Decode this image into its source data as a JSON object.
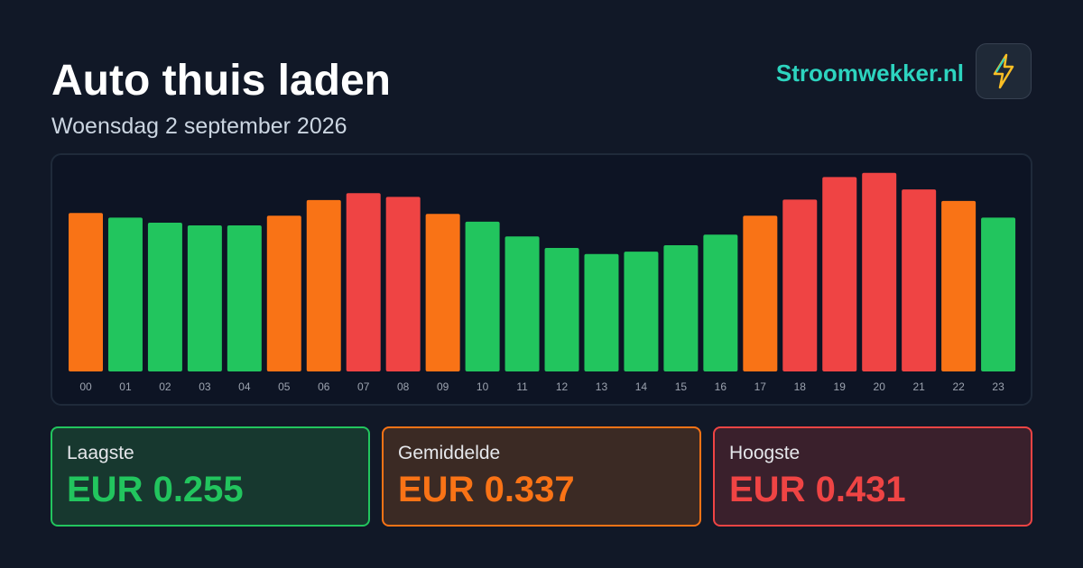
{
  "header": {
    "title": "Auto thuis laden",
    "subtitle": "Woensdag 2 september 2026",
    "brand": "Stroomwekker.nl"
  },
  "chart_data": {
    "type": "bar",
    "categories": [
      "00",
      "01",
      "02",
      "03",
      "04",
      "05",
      "06",
      "07",
      "08",
      "09",
      "10",
      "11",
      "12",
      "13",
      "14",
      "15",
      "16",
      "17",
      "18",
      "19",
      "20",
      "21",
      "22",
      "23"
    ],
    "values": [
      0.344,
      0.334,
      0.323,
      0.317,
      0.317,
      0.338,
      0.372,
      0.387,
      0.379,
      0.342,
      0.325,
      0.293,
      0.268,
      0.255,
      0.26,
      0.274,
      0.297,
      0.338,
      0.373,
      0.422,
      0.431,
      0.395,
      0.37,
      0.334
    ],
    "colors": [
      "#f97316",
      "#22c55e",
      "#22c55e",
      "#22c55e",
      "#22c55e",
      "#f97316",
      "#f97316",
      "#ef4444",
      "#ef4444",
      "#f97316",
      "#22c55e",
      "#22c55e",
      "#22c55e",
      "#22c55e",
      "#22c55e",
      "#22c55e",
      "#22c55e",
      "#f97316",
      "#ef4444",
      "#ef4444",
      "#ef4444",
      "#ef4444",
      "#f97316",
      "#22c55e"
    ]
  },
  "stats": [
    {
      "label": "Laagste",
      "value": "EUR 0.255"
    },
    {
      "label": "Gemiddelde",
      "value": "EUR 0.337"
    },
    {
      "label": "Hoogste",
      "value": "EUR 0.431"
    }
  ]
}
